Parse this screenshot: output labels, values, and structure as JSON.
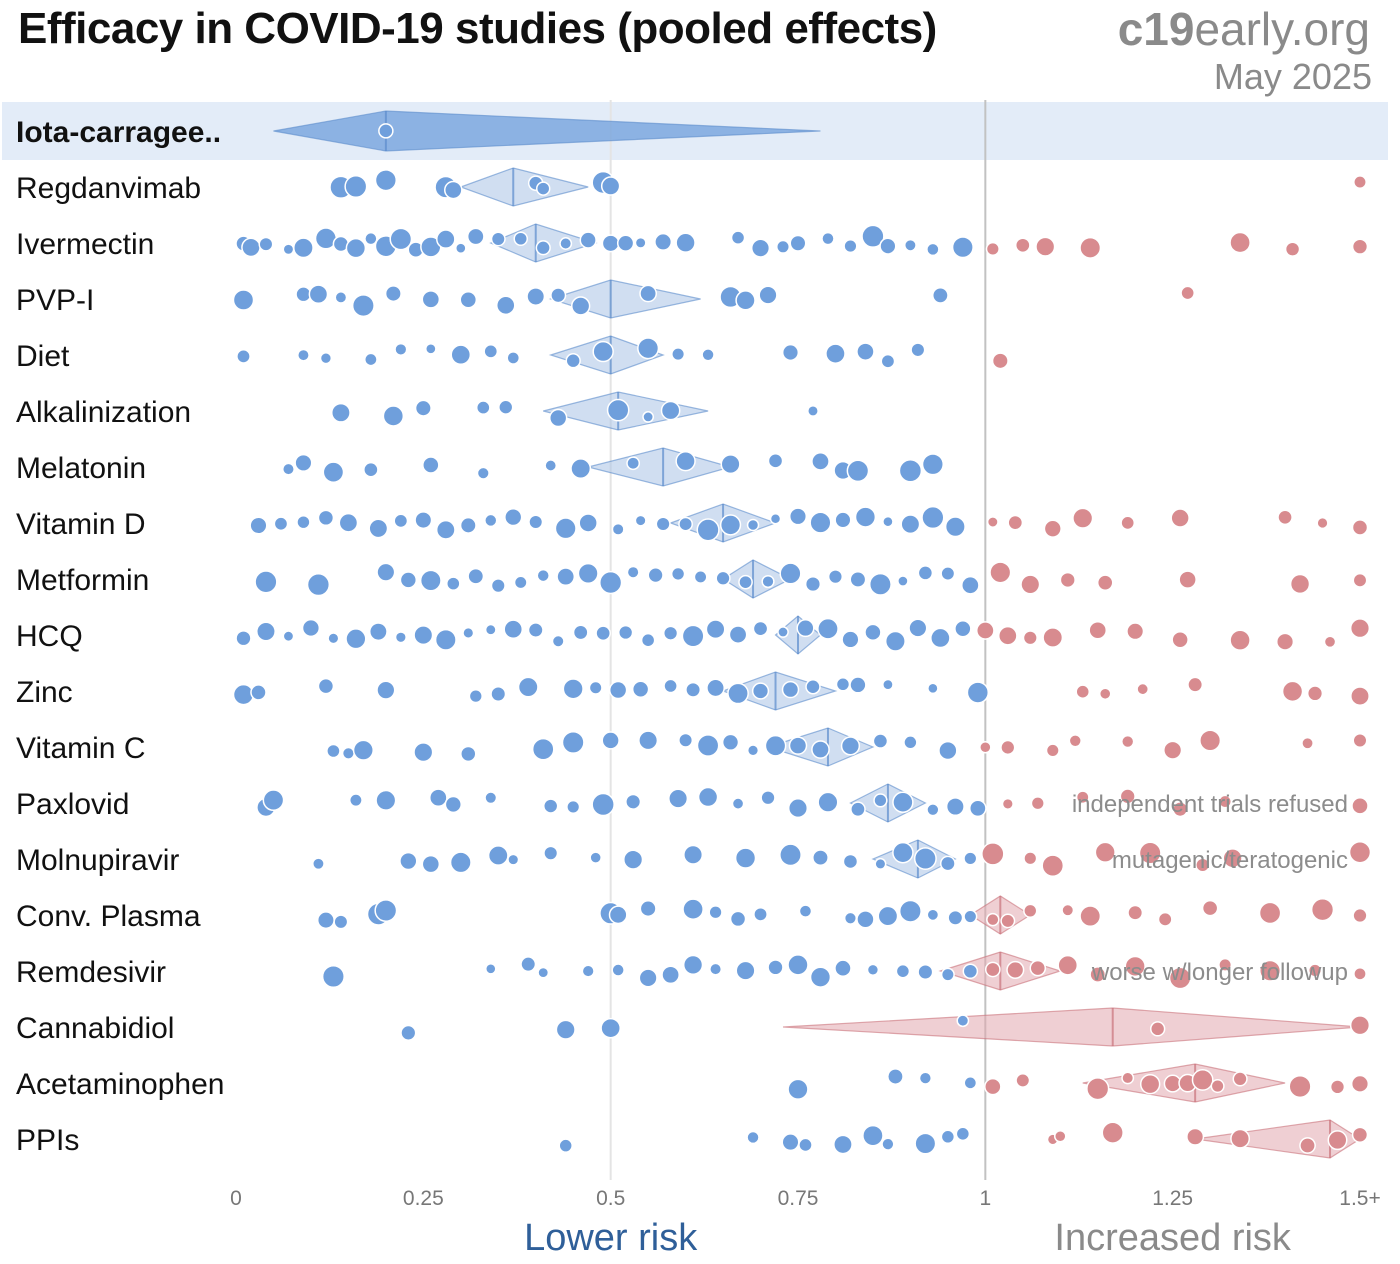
{
  "header": {
    "title": "Efficacy in COVID-19 studies (pooled effects)",
    "brand_bold": "c19",
    "brand_rest": "early.org",
    "date": "May 2025"
  },
  "colors": {
    "lower": "#6f9fdc",
    "higher": "#d88b8f",
    "highlight_bg": "#e3ecf8",
    "diamond_blue": "#a9c3e6",
    "diamond_red": "#e1a8ae"
  },
  "chart_data": {
    "type": "scatter",
    "title": "Efficacy in COVID-19 studies (pooled effects)",
    "xlim": [
      0,
      1.5
    ],
    "x_ticks": [
      {
        "value": 0,
        "label": "0"
      },
      {
        "value": 0.25,
        "label": "0.25"
      },
      {
        "value": 0.5,
        "label": "0.5"
      },
      {
        "value": 0.75,
        "label": "0.75"
      },
      {
        "value": 1,
        "label": "1"
      },
      {
        "value": 1.25,
        "label": "1.25"
      },
      {
        "value": 1.5,
        "label": "1.5+"
      }
    ],
    "left_label": "Lower risk",
    "right_label": "Increased risk",
    "rows": [
      {
        "name": "Iota-carragee..",
        "highlight": true,
        "pooled": 0.2,
        "ci": [
          0.05,
          0.78
        ],
        "studies": [
          0.2
        ]
      },
      {
        "name": "Regdanvimab",
        "pooled": 0.37,
        "ci": [
          0.3,
          0.47
        ],
        "studies": [
          0.14,
          0.16,
          0.2,
          0.28,
          0.29,
          0.4,
          0.41,
          0.49,
          0.5,
          1.5
        ]
      },
      {
        "name": "Ivermectin",
        "pooled": 0.4,
        "ci": [
          0.34,
          0.48
        ],
        "studies": [
          0.01,
          0.02,
          0.04,
          0.07,
          0.09,
          0.12,
          0.14,
          0.16,
          0.18,
          0.2,
          0.22,
          0.24,
          0.26,
          0.28,
          0.3,
          0.32,
          0.35,
          0.38,
          0.41,
          0.44,
          0.47,
          0.5,
          0.52,
          0.54,
          0.57,
          0.6,
          0.67,
          0.7,
          0.73,
          0.75,
          0.79,
          0.82,
          0.85,
          0.87,
          0.9,
          0.93,
          0.97,
          1.01,
          1.05,
          1.08,
          1.14,
          1.34,
          1.41,
          1.5
        ]
      },
      {
        "name": "PVP-I",
        "pooled": 0.5,
        "ci": [
          0.42,
          0.62
        ],
        "studies": [
          0.01,
          0.09,
          0.11,
          0.14,
          0.17,
          0.21,
          0.26,
          0.31,
          0.36,
          0.4,
          0.43,
          0.46,
          0.55,
          0.66,
          0.68,
          0.71,
          0.94,
          1.27
        ]
      },
      {
        "name": "Diet",
        "pooled": 0.5,
        "ci": [
          0.42,
          0.57
        ],
        "studies": [
          0.01,
          0.09,
          0.12,
          0.18,
          0.22,
          0.26,
          0.3,
          0.34,
          0.37,
          0.45,
          0.49,
          0.55,
          0.59,
          0.63,
          0.74,
          0.8,
          0.84,
          0.87,
          0.91,
          1.02
        ]
      },
      {
        "name": "Alkalinization",
        "pooled": 0.51,
        "ci": [
          0.41,
          0.63
        ],
        "studies": [
          0.14,
          0.21,
          0.25,
          0.33,
          0.36,
          0.43,
          0.51,
          0.55,
          0.58,
          0.77
        ]
      },
      {
        "name": "Melatonin",
        "pooled": 0.57,
        "ci": [
          0.47,
          0.66
        ],
        "studies": [
          0.07,
          0.09,
          0.13,
          0.18,
          0.26,
          0.33,
          0.42,
          0.46,
          0.53,
          0.6,
          0.66,
          0.72,
          0.78,
          0.81,
          0.83,
          0.9,
          0.93
        ]
      },
      {
        "name": "Vitamin D",
        "pooled": 0.65,
        "ci": [
          0.58,
          0.72
        ],
        "studies": [
          0.03,
          0.06,
          0.09,
          0.12,
          0.15,
          0.19,
          0.22,
          0.25,
          0.28,
          0.31,
          0.34,
          0.37,
          0.4,
          0.44,
          0.47,
          0.51,
          0.54,
          0.57,
          0.6,
          0.63,
          0.66,
          0.69,
          0.72,
          0.75,
          0.78,
          0.81,
          0.84,
          0.87,
          0.9,
          0.93,
          0.96,
          1.01,
          1.04,
          1.09,
          1.13,
          1.19,
          1.26,
          1.4,
          1.45,
          1.5
        ]
      },
      {
        "name": "Metformin",
        "pooled": 0.69,
        "ci": [
          0.65,
          0.74
        ],
        "studies": [
          0.04,
          0.11,
          0.2,
          0.23,
          0.26,
          0.29,
          0.32,
          0.35,
          0.38,
          0.41,
          0.44,
          0.47,
          0.5,
          0.53,
          0.56,
          0.59,
          0.62,
          0.65,
          0.68,
          0.71,
          0.74,
          0.77,
          0.8,
          0.83,
          0.86,
          0.89,
          0.92,
          0.95,
          0.98,
          1.02,
          1.06,
          1.11,
          1.16,
          1.27,
          1.42,
          1.5
        ]
      },
      {
        "name": "HCQ",
        "pooled": 0.75,
        "ci": [
          0.72,
          0.78
        ],
        "studies": [
          0.01,
          0.04,
          0.07,
          0.1,
          0.13,
          0.16,
          0.19,
          0.22,
          0.25,
          0.28,
          0.31,
          0.34,
          0.37,
          0.4,
          0.43,
          0.46,
          0.49,
          0.52,
          0.55,
          0.58,
          0.61,
          0.64,
          0.67,
          0.7,
          0.73,
          0.76,
          0.79,
          0.82,
          0.85,
          0.88,
          0.91,
          0.94,
          0.97,
          1.0,
          1.03,
          1.06,
          1.09,
          1.15,
          1.2,
          1.26,
          1.34,
          1.4,
          1.46,
          1.5
        ]
      },
      {
        "name": "Zinc",
        "pooled": 0.72,
        "ci": [
          0.65,
          0.8
        ],
        "studies": [
          0.01,
          0.03,
          0.12,
          0.2,
          0.32,
          0.35,
          0.39,
          0.45,
          0.48,
          0.51,
          0.54,
          0.58,
          0.61,
          0.64,
          0.67,
          0.7,
          0.74,
          0.77,
          0.81,
          0.83,
          0.87,
          0.93,
          0.99,
          1.13,
          1.16,
          1.21,
          1.28,
          1.41,
          1.44,
          1.5
        ]
      },
      {
        "name": "Vitamin C",
        "pooled": 0.79,
        "ci": [
          0.71,
          0.85
        ],
        "studies": [
          0.13,
          0.15,
          0.17,
          0.25,
          0.31,
          0.41,
          0.45,
          0.5,
          0.55,
          0.6,
          0.63,
          0.66,
          0.69,
          0.72,
          0.75,
          0.78,
          0.82,
          0.86,
          0.9,
          0.95,
          1.0,
          1.03,
          1.09,
          1.12,
          1.19,
          1.25,
          1.3,
          1.43,
          1.5
        ]
      },
      {
        "name": "Paxlovid",
        "pooled": 0.87,
        "ci": [
          0.82,
          0.92
        ],
        "studies": [
          0.04,
          0.05,
          0.16,
          0.2,
          0.27,
          0.29,
          0.34,
          0.42,
          0.45,
          0.49,
          0.53,
          0.59,
          0.63,
          0.67,
          0.71,
          0.75,
          0.79,
          0.83,
          0.86,
          0.89,
          0.93,
          0.96,
          0.99,
          1.03,
          1.07,
          1.13,
          1.19,
          1.26,
          1.32,
          1.5
        ]
      },
      {
        "name": "Molnupiravir",
        "pooled": 0.91,
        "ci": [
          0.85,
          0.96
        ],
        "studies": [
          0.11,
          0.23,
          0.26,
          0.3,
          0.35,
          0.37,
          0.42,
          0.48,
          0.53,
          0.61,
          0.68,
          0.74,
          0.78,
          0.82,
          0.86,
          0.89,
          0.92,
          0.95,
          0.98,
          1.01,
          1.06,
          1.09,
          1.16,
          1.22,
          1.29,
          1.33,
          1.5
        ]
      },
      {
        "name": "Conv. Plasma",
        "pooled": 1.02,
        "ci": [
          0.98,
          1.06
        ],
        "studies": [
          0.12,
          0.14,
          0.19,
          0.2,
          0.5,
          0.51,
          0.55,
          0.61,
          0.64,
          0.67,
          0.7,
          0.76,
          0.82,
          0.84,
          0.87,
          0.9,
          0.93,
          0.96,
          0.98,
          1.01,
          1.03,
          1.06,
          1.11,
          1.14,
          1.2,
          1.24,
          1.3,
          1.38,
          1.45,
          1.5
        ]
      },
      {
        "name": "Remdesivir",
        "pooled": 1.02,
        "ci": [
          0.94,
          1.1
        ],
        "studies": [
          0.13,
          0.34,
          0.39,
          0.41,
          0.47,
          0.51,
          0.55,
          0.58,
          0.61,
          0.64,
          0.68,
          0.72,
          0.75,
          0.78,
          0.81,
          0.85,
          0.89,
          0.92,
          0.95,
          0.98,
          1.01,
          1.04,
          1.07,
          1.11,
          1.15,
          1.2,
          1.26,
          1.32,
          1.38,
          1.44,
          1.5
        ]
      },
      {
        "name": "Cannabidiol",
        "pooled": 1.17,
        "ci": [
          0.73,
          1.5
        ],
        "studies": [
          0.23,
          0.44,
          0.5,
          0.97,
          1.23,
          1.5
        ]
      },
      {
        "name": "Acetaminophen",
        "pooled": 1.28,
        "ci": [
          1.13,
          1.4
        ],
        "studies": [
          0.75,
          0.88,
          0.92,
          0.98,
          1.01,
          1.05,
          1.15,
          1.19,
          1.22,
          1.25,
          1.27,
          1.29,
          1.31,
          1.34,
          1.42,
          1.47,
          1.5
        ]
      },
      {
        "name": "PPIs",
        "pooled": 1.46,
        "ci": [
          1.28,
          1.5
        ],
        "studies": [
          0.44,
          0.69,
          0.74,
          0.76,
          0.81,
          0.85,
          0.87,
          0.92,
          0.95,
          0.97,
          1.09,
          1.1,
          1.17,
          1.28,
          1.34,
          1.43,
          1.47,
          1.5
        ]
      }
    ],
    "annotations": [
      {
        "row": "Paxlovid",
        "text": "independent trials refused"
      },
      {
        "row": "Molnupiravir",
        "text": "mutagenic/teratogenic"
      },
      {
        "row": "Remdesivir",
        "text": "worse w/longer followup"
      }
    ]
  }
}
